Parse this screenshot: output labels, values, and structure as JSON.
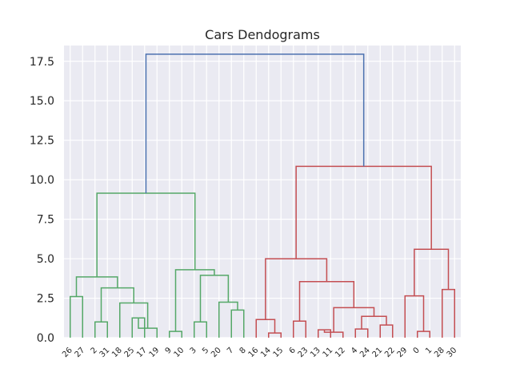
{
  "chart_data": {
    "type": "dendrogram",
    "title": "Cars Dendograms",
    "xlabel": "",
    "ylabel": "",
    "ylim": [
      0,
      18.5
    ],
    "yticks": [
      "0.0",
      "2.5",
      "5.0",
      "7.5",
      "10.0",
      "12.5",
      "15.0",
      "17.5"
    ],
    "grid": true,
    "leaves": [
      "26",
      "27",
      "2",
      "31",
      "18",
      "25",
      "17",
      "19",
      "9",
      "10",
      "3",
      "5",
      "20",
      "7",
      "8",
      "16",
      "14",
      "15",
      "6",
      "23",
      "13",
      "11",
      "12",
      "4",
      "24",
      "21",
      "22",
      "29",
      "0",
      "1",
      "28",
      "30"
    ],
    "colors": {
      "above_threshold": "#4c72b0",
      "cluster_1": "#55a868",
      "cluster_2": "#c44e52"
    },
    "merges": [
      {
        "left": "27",
        "right": "26",
        "height": 2.6,
        "color": "cluster_1"
      },
      {
        "left": "2",
        "right": "31",
        "height": 1.0,
        "color": "cluster_1"
      },
      {
        "left": "25",
        "right": "17",
        "height": 1.25,
        "color": "cluster_1"
      },
      {
        "left": "17",
        "right": "19",
        "height": 0.6,
        "color": "cluster_1"
      },
      {
        "left": "18",
        "right": "25",
        "height": 2.2,
        "color": "cluster_1"
      },
      {
        "left": "2",
        "right": "18",
        "height": 3.15,
        "color": "cluster_1"
      },
      {
        "left": "26",
        "right": "2",
        "height": 3.85,
        "color": "cluster_1"
      },
      {
        "left": "9",
        "right": "10",
        "height": 0.4,
        "color": "cluster_1"
      },
      {
        "left": "3",
        "right": "5",
        "height": 1.0,
        "color": "cluster_1"
      },
      {
        "left": "7",
        "right": "8",
        "height": 1.75,
        "color": "cluster_1"
      },
      {
        "left": "20",
        "right": "7",
        "height": 2.25,
        "color": "cluster_1"
      },
      {
        "left": "3",
        "right": "20",
        "height": 3.95,
        "color": "cluster_1"
      },
      {
        "left": "9",
        "right": "3",
        "height": 4.3,
        "color": "cluster_1"
      },
      {
        "left": "26",
        "right": "9",
        "height": 9.15,
        "color": "cluster_1"
      },
      {
        "left": "14",
        "right": "15",
        "height": 0.3,
        "color": "cluster_2"
      },
      {
        "left": "16",
        "right": "14",
        "height": 1.15,
        "color": "cluster_2"
      },
      {
        "left": "6",
        "right": "23",
        "height": 1.05,
        "color": "cluster_2"
      },
      {
        "left": "13",
        "right": "11",
        "height": 0.5,
        "color": "cluster_2"
      },
      {
        "left": "11",
        "right": "12",
        "height": 0.35,
        "color": "cluster_2"
      },
      {
        "left": "4",
        "right": "24",
        "height": 0.55,
        "color": "cluster_2"
      },
      {
        "left": "21",
        "right": "22",
        "height": 0.8,
        "color": "cluster_2"
      },
      {
        "left": "4",
        "right": "21",
        "height": 1.35,
        "color": "cluster_2"
      },
      {
        "left": "13",
        "right": "4",
        "height": 1.9,
        "color": "cluster_2"
      },
      {
        "left": "6",
        "right": "13",
        "height": 3.55,
        "color": "cluster_2"
      },
      {
        "left": "16",
        "right": "6",
        "height": 5.0,
        "color": "cluster_2"
      },
      {
        "left": "0",
        "right": "1",
        "height": 0.4,
        "color": "cluster_2"
      },
      {
        "left": "29",
        "right": "0",
        "height": 2.65,
        "color": "cluster_2"
      },
      {
        "left": "28",
        "right": "30",
        "height": 3.05,
        "color": "cluster_2"
      },
      {
        "left": "29",
        "right": "28",
        "height": 5.6,
        "color": "cluster_2"
      },
      {
        "left": "16",
        "right": "29",
        "height": 10.85,
        "color": "cluster_2"
      },
      {
        "left": "26",
        "right": "16",
        "height": 17.95,
        "color": "above_threshold"
      }
    ]
  }
}
